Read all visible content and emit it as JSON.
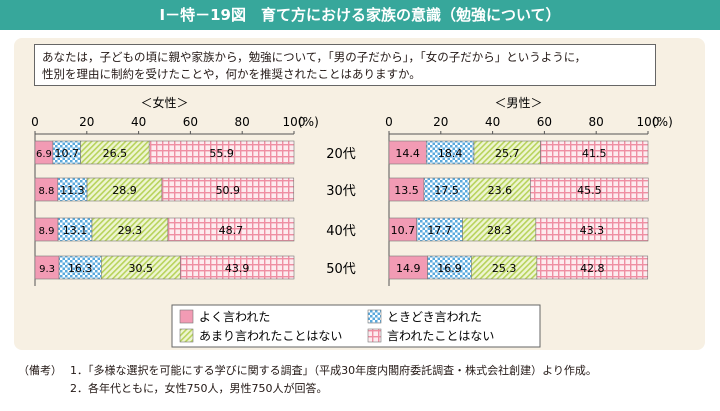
{
  "title": "Ⅰ－特－19図　育て方における家族の意識（勉強について）",
  "question": [
    "あなたは，子どもの頃に親や家族から，勉強について，「男の子だから」，「女の子だから」というように，",
    "性別を理由に制約を受けたことや，何かを推奨されたことはありますか。"
  ],
  "notes": {
    "label": "（備考）",
    "items": [
      "1．「多様な選択を可能にする学びに関する調査」（平成30年度内閣府委託調査・株式会社創建）より作成。",
      "2．各年代ともに，女性750人，男性750人が回答。"
    ]
  },
  "colors": {
    "title_bar": "#37a79b",
    "panel": "#f7f0e3",
    "often": "#f29bb4",
    "sometimes": "#5aa9dd",
    "rarely": "#c5dc6c",
    "never": "#ef8fa3"
  },
  "chart_data": {
    "type": "bar",
    "orientation": "horizontal",
    "stacked": true,
    "unit": "(%)",
    "categories": [
      "20代",
      "30代",
      "40代",
      "50代"
    ],
    "xlim": [
      0,
      100
    ],
    "ticks": [
      "0",
      "20",
      "40",
      "60",
      "80",
      "100"
    ],
    "legend": {
      "placement": "bottom",
      "entries": [
        {
          "key": "often",
          "label": "よく言われた"
        },
        {
          "key": "sometimes",
          "label": "ときどき言われた"
        },
        {
          "key": "rarely",
          "label": "あまり言われたことはない"
        },
        {
          "key": "never",
          "label": "言われたことはない"
        }
      ]
    },
    "panels": [
      {
        "title": "＜女性＞",
        "series": [
          {
            "key": "often",
            "name": "よく言われた",
            "values": [
              6.9,
              8.8,
              8.9,
              9.3
            ]
          },
          {
            "key": "sometimes",
            "name": "ときどき言われた",
            "values": [
              10.7,
              11.3,
              13.1,
              16.3
            ]
          },
          {
            "key": "rarely",
            "name": "あまり言われたことはない",
            "values": [
              26.5,
              28.9,
              29.3,
              30.5
            ]
          },
          {
            "key": "never",
            "name": "言われたことはない",
            "values": [
              55.9,
              50.9,
              48.7,
              43.9
            ]
          }
        ]
      },
      {
        "title": "＜男性＞",
        "series": [
          {
            "key": "often",
            "name": "よく言われた",
            "values": [
              14.4,
              13.5,
              10.7,
              14.9
            ]
          },
          {
            "key": "sometimes",
            "name": "ときどき言われた",
            "values": [
              18.4,
              17.5,
              17.7,
              16.9
            ]
          },
          {
            "key": "rarely",
            "name": "あまり言われたことはない",
            "values": [
              25.7,
              23.6,
              28.3,
              25.3
            ]
          },
          {
            "key": "never",
            "name": "言われたことはない",
            "values": [
              41.5,
              45.5,
              43.3,
              42.8
            ]
          }
        ]
      }
    ]
  }
}
